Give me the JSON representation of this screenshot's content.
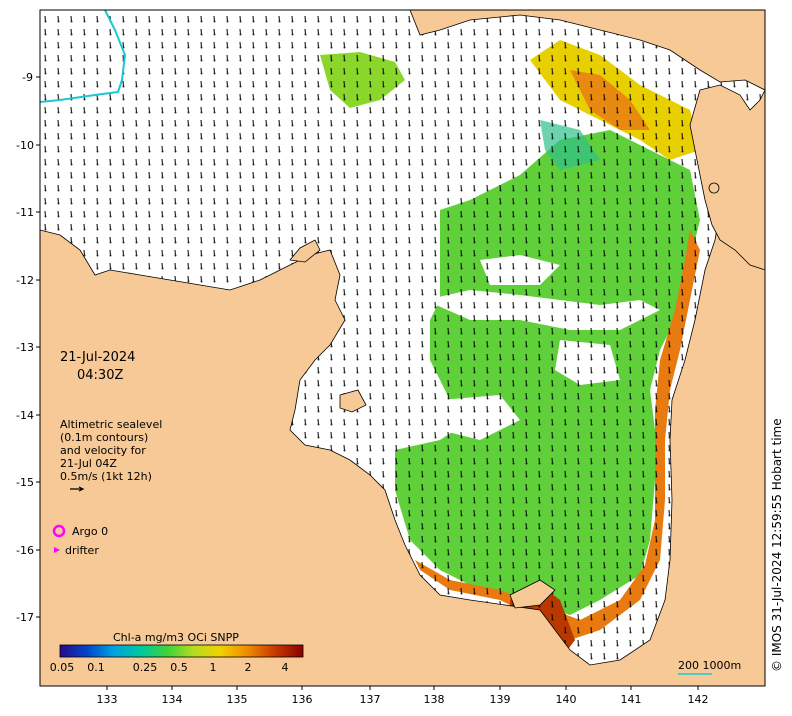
{
  "map": {
    "lat_ticks": [
      "-9",
      "-10",
      "-11",
      "-12",
      "-13",
      "-14",
      "-15",
      "-16",
      "-17"
    ],
    "lon_ticks": [
      "133",
      "134",
      "135",
      "136",
      "137",
      "138",
      "139",
      "140",
      "141",
      "142"
    ],
    "land_color": "#f7c996",
    "ocean_color": "#ffffff",
    "contour_color": "#19c8d2"
  },
  "info": {
    "date": "21-Jul-2024",
    "time": "04:30Z",
    "alt_lines": [
      "Altimetric sealevel",
      "(0.1m contours)",
      "and velocity for",
      "21-Jul 04Z",
      "0.5m/s (1kt 12h)"
    ]
  },
  "legend": {
    "argo_label": "Argo 0",
    "drifter_label": "drifter",
    "argo_color": "#ff00ff",
    "drifter_color": "#ff00ff"
  },
  "colorbar": {
    "title": "Chl-a mg/m3 OCi SNPP",
    "ticks": [
      "0.05",
      "0.1",
      "0.25",
      "0.5",
      "1",
      "2",
      "4"
    ],
    "stops": [
      "#2a0b87",
      "#0046c8",
      "#00a0e0",
      "#00c8a0",
      "#3cd23c",
      "#b4dc1e",
      "#f0d200",
      "#f08c00",
      "#c83c00",
      "#8c0000"
    ]
  },
  "scale": {
    "label": "200  1000m"
  },
  "credit": "© IMOS 31-Jul-2024 12:59:55 Hobart time"
}
